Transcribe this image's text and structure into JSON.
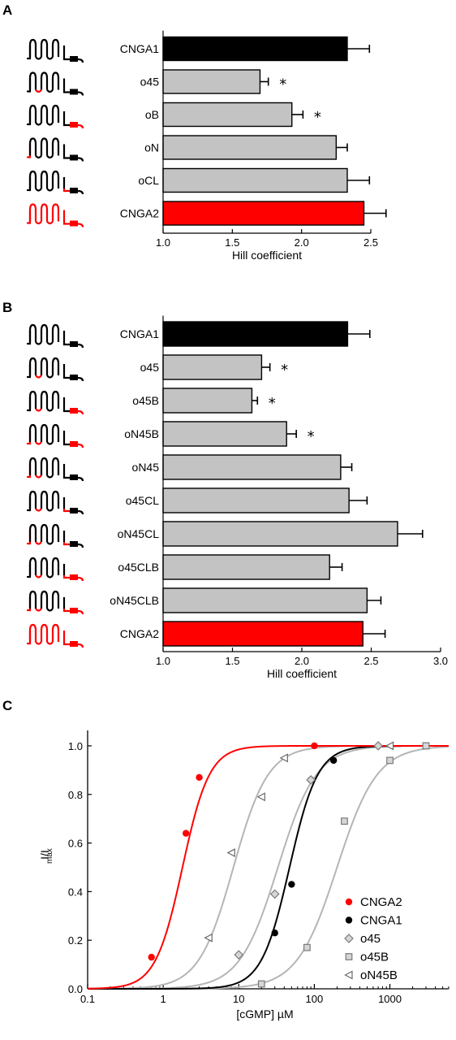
{
  "colors": {
    "black": "#000000",
    "gray_bar": "#c3c3c3",
    "red": "#ff0000",
    "curve_gray": "#b5b5b5",
    "marker_gray": "#b0b0b0"
  },
  "icon_names": [
    "channel-topology-icon"
  ],
  "chart_data": [
    {
      "panel": "A",
      "type": "bar",
      "orientation": "horizontal",
      "categories": [
        "CNGA1",
        "o45",
        "oB",
        "oN",
        "oCL",
        "CNGA2"
      ],
      "values": [
        2.33,
        1.7,
        1.93,
        2.25,
        2.33,
        2.45
      ],
      "errors": [
        0.16,
        0.06,
        0.08,
        0.08,
        0.16,
        0.16
      ],
      "significant": [
        false,
        true,
        true,
        false,
        false,
        false
      ],
      "star_symbol": "*",
      "bar_colors": [
        "#000000",
        "#c3c3c3",
        "#c3c3c3",
        "#c3c3c3",
        "#c3c3c3",
        "#ff0000"
      ],
      "xlabel": "Hill coefficient",
      "xlim": [
        1.0,
        2.5
      ],
      "xticks": [
        "1.0",
        "1.5",
        "2.0",
        "2.5"
      ],
      "schematic_highlight": [
        "none",
        "loop",
        "cterm",
        "nterm",
        "linker",
        "all"
      ]
    },
    {
      "panel": "B",
      "type": "bar",
      "orientation": "horizontal",
      "categories": [
        "CNGA1",
        "o45",
        "o45B",
        "oN45B",
        "oN45",
        "o45CL",
        "oN45CL",
        "o45CLB",
        "oN45CLB",
        "CNGA2"
      ],
      "values": [
        2.33,
        1.71,
        1.64,
        1.89,
        2.28,
        2.34,
        2.69,
        2.2,
        2.47,
        2.44
      ],
      "errors": [
        0.16,
        0.06,
        0.04,
        0.07,
        0.08,
        0.13,
        0.18,
        0.09,
        0.1,
        0.16
      ],
      "significant": [
        false,
        true,
        true,
        true,
        false,
        false,
        false,
        false,
        false,
        false
      ],
      "star_symbol": "*",
      "bar_colors": [
        "#000000",
        "#c3c3c3",
        "#c3c3c3",
        "#c3c3c3",
        "#c3c3c3",
        "#c3c3c3",
        "#c3c3c3",
        "#c3c3c3",
        "#c3c3c3",
        "#ff0000"
      ],
      "xlabel": "Hill coefficient",
      "xlim": [
        1.0,
        3.0
      ],
      "xticks": [
        "1.0",
        "1.5",
        "2.0",
        "2.5",
        "3.0"
      ],
      "schematic_highlight": [
        "none",
        "loop",
        "loop+cterm",
        "nterm+loop+cterm",
        "nterm+loop",
        "loop+linker",
        "nterm+loop+linker",
        "loop+linker+cterm",
        "nterm+loop+linker+cterm",
        "all"
      ]
    },
    {
      "panel": "C",
      "type": "line",
      "xscale": "log",
      "xlim": [
        0.1,
        6000
      ],
      "ylim": [
        0.0,
        1.05
      ],
      "xticks": [
        "0.1",
        "1",
        "10",
        "100",
        "1000"
      ],
      "yticks": [
        "0.0",
        "0.2",
        "0.4",
        "0.6",
        "0.8",
        "1.0"
      ],
      "xlabel": "[cGMP] µM",
      "ylabel_main": "I/I",
      "ylabel_sub": "max",
      "legend_position": "lower-right",
      "series": [
        {
          "name": "CNGA2",
          "marker": "circle",
          "color": "#ff0000",
          "curve_color": "#ff0000",
          "ec50": 1.8,
          "hill": 2.44,
          "x": [
            0.7,
            2.0,
            3.0,
            100
          ],
          "y": [
            0.13,
            0.64,
            0.87,
            1.0
          ]
        },
        {
          "name": "CNGA1",
          "marker": "circle",
          "color": "#000000",
          "curve_color": "#000000",
          "ec50": 47,
          "hill": 2.33,
          "x": [
            30,
            50,
            90,
            180
          ],
          "y": [
            0.23,
            0.43,
            0.86,
            0.94
          ]
        },
        {
          "name": "o45",
          "marker": "diamond",
          "color": "#b0b0b0",
          "curve_color": "#b5b5b5",
          "ec50": 33,
          "hill": 1.71,
          "x": [
            10,
            30,
            90,
            700
          ],
          "y": [
            0.14,
            0.39,
            0.86,
            1.0
          ]
        },
        {
          "name": "o45B",
          "marker": "square",
          "color": "#b0b0b0",
          "curve_color": "#b5b5b5",
          "ec50": 200,
          "hill": 1.64,
          "x": [
            20,
            80,
            250,
            1000,
            3000
          ],
          "y": [
            0.02,
            0.17,
            0.69,
            0.94,
            1.0
          ]
        },
        {
          "name": "oN45B",
          "marker": "triangle-left",
          "color": "#b0b0b0",
          "curve_color": "#b5b5b5",
          "ec50": 8.5,
          "hill": 1.89,
          "x": [
            4,
            8,
            20,
            40,
            1000
          ],
          "y": [
            0.21,
            0.56,
            0.79,
            0.95,
            1.0
          ]
        }
      ]
    }
  ]
}
